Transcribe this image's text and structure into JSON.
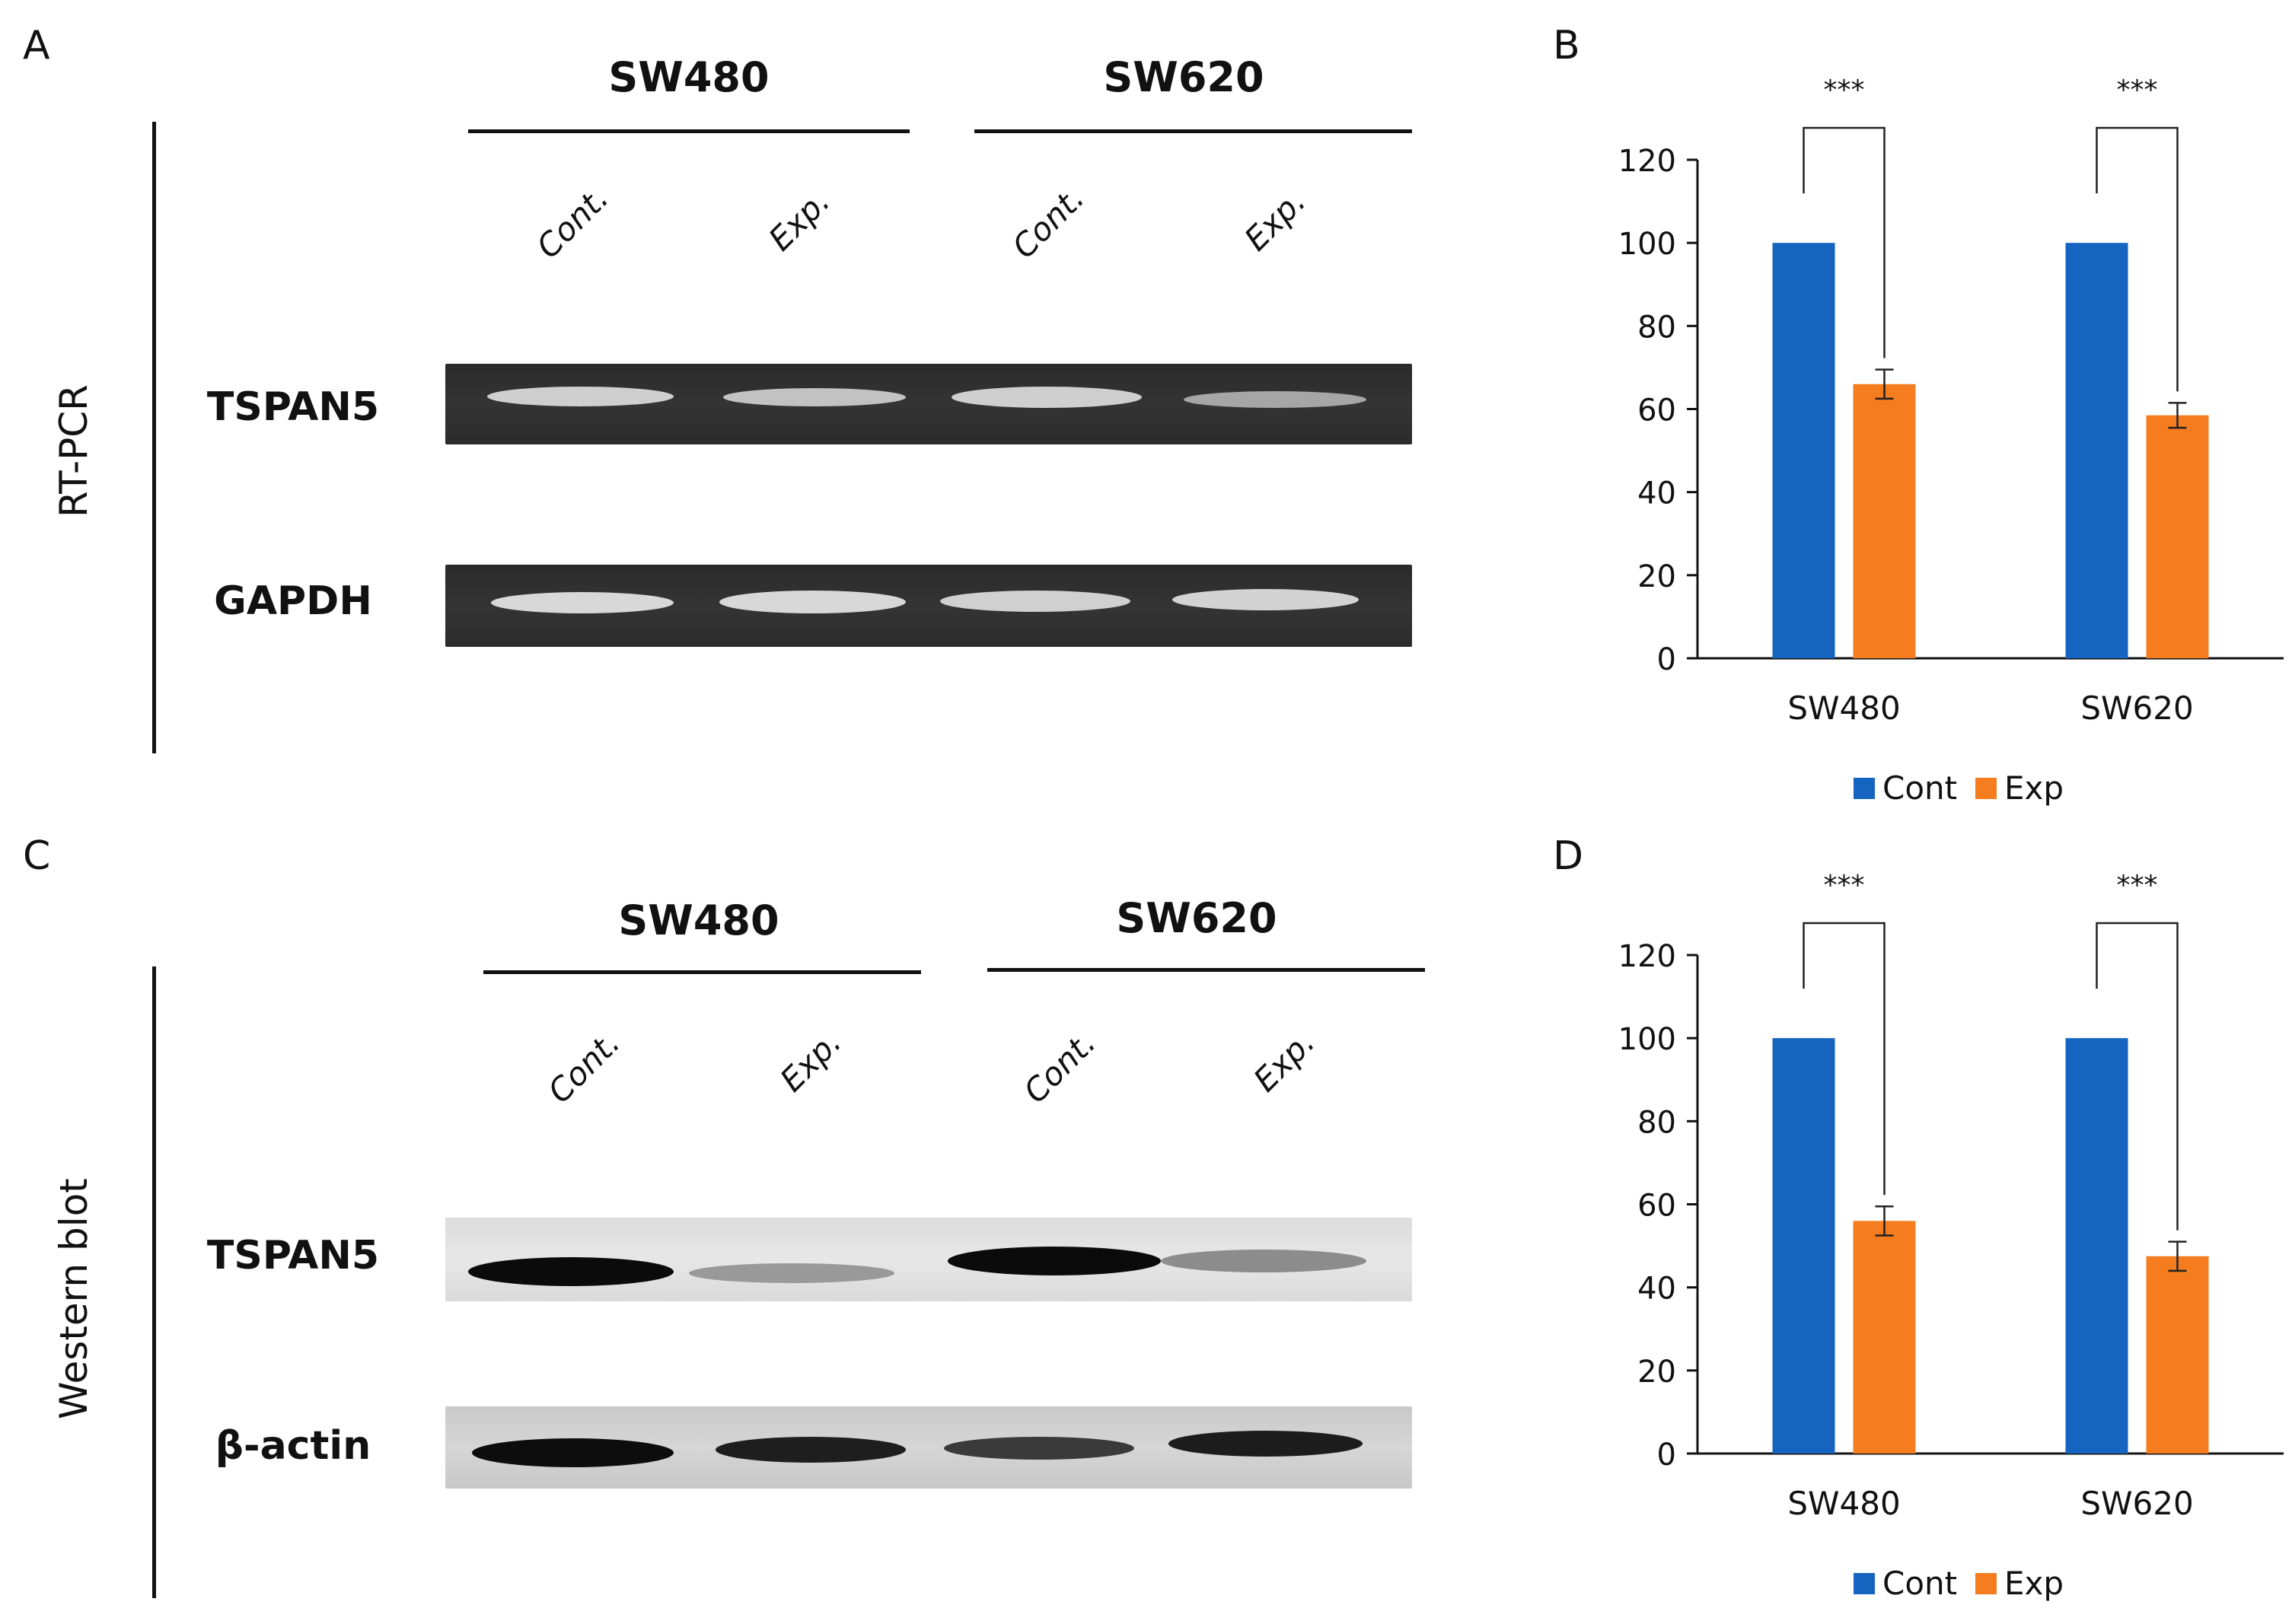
{
  "panels": {
    "A": {
      "letter": "A",
      "side_label": "RT-PCR",
      "cells": [
        "SW480",
        "SW620"
      ],
      "lanes": [
        "Cont.",
        "Exp.",
        "Cont.",
        "Exp."
      ],
      "rows": [
        {
          "label": "TSPAN5",
          "intensity": [
            0.9,
            0.8,
            0.9,
            0.65
          ]
        },
        {
          "label": "GAPDH",
          "intensity": [
            0.95,
            0.95,
            0.9,
            0.9
          ]
        }
      ]
    },
    "B": {
      "letter": "B"
    },
    "C": {
      "letter": "C",
      "side_label": "Western blot",
      "cells": [
        "SW480",
        "SW620"
      ],
      "lanes": [
        "Cont.",
        "Exp.",
        "Cont.",
        "Exp."
      ],
      "rows": [
        {
          "label": "TSPAN5",
          "intensity": [
            1.0,
            0.45,
            1.0,
            0.5
          ]
        },
        {
          "label": "β-actin",
          "intensity": [
            1.0,
            0.85,
            0.75,
            0.9
          ]
        }
      ]
    },
    "D": {
      "letter": "D"
    }
  },
  "colors": {
    "cont": "#1565c0",
    "exp": "#f57c1f",
    "axis": "#111111"
  },
  "chart_data": [
    {
      "panel": "B",
      "type": "bar",
      "categories": [
        "SW480",
        "SW620"
      ],
      "series": [
        {
          "name": "Cont",
          "values": [
            100,
            100
          ],
          "errors": [
            0,
            0
          ]
        },
        {
          "name": "Exp",
          "values": [
            66,
            58.5
          ],
          "errors": [
            3.5,
            3
          ]
        }
      ],
      "yticks": [
        0,
        20,
        40,
        60,
        80,
        100,
        120
      ],
      "ylim": [
        0,
        120
      ],
      "significance": [
        "***",
        "***"
      ],
      "legend_position": "bottom",
      "grid": false
    },
    {
      "panel": "D",
      "type": "bar",
      "categories": [
        "SW480",
        "SW620"
      ],
      "series": [
        {
          "name": "Cont",
          "values": [
            100,
            100
          ],
          "errors": [
            0,
            0
          ]
        },
        {
          "name": "Exp",
          "values": [
            56,
            47.5
          ],
          "errors": [
            3.5,
            3.5
          ]
        }
      ],
      "yticks": [
        0,
        20,
        40,
        60,
        80,
        100,
        120
      ],
      "ylim": [
        0,
        120
      ],
      "significance": [
        "***",
        "***"
      ],
      "legend_position": "bottom",
      "grid": false
    }
  ]
}
